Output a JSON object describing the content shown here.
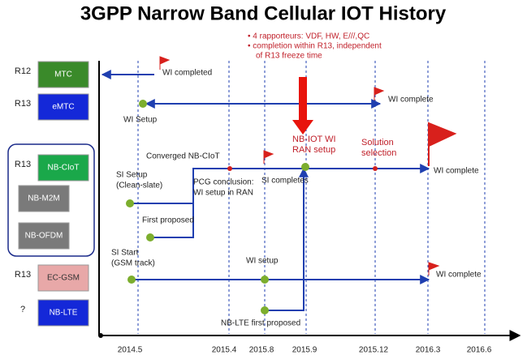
{
  "title": "3GPP Narrow Band Cellular IOT History",
  "notes": [
    "• 4 rapporteurs: VDF, HW, E///,QC",
    "• completion within R13, independent",
    "of R13 freeze time"
  ],
  "rows": [
    {
      "release": "R12",
      "label": "MTC"
    },
    {
      "release": "R13",
      "label": "eMTC"
    },
    {
      "release": "R13",
      "label": "NB-CIoT"
    },
    {
      "label": "NB-M2M"
    },
    {
      "label": "NB-OFDM"
    },
    {
      "release": "R13",
      "label": "EC-GSM"
    },
    {
      "release": "?",
      "label": "NB-LTE"
    }
  ],
  "timeline": [
    "2014.5",
    "2015.4",
    "2015.8",
    "2015.9",
    "2015.12",
    "2016.3",
    "2016.6"
  ],
  "annotations": [
    {
      "lines": [
        "WI completed"
      ]
    },
    {
      "lines": [
        "WI complete"
      ]
    },
    {
      "lines": [
        "WI  Setup"
      ]
    },
    {
      "lines": [
        "Converged NB-CIoT"
      ]
    },
    {
      "lines": [
        "NB-IOT WI",
        "RAN setup"
      ]
    },
    {
      "lines": [
        "Solution",
        "selection"
      ]
    },
    {
      "lines": [
        "WI complete"
      ]
    },
    {
      "lines": [
        "SI Setup",
        "(Clean-slate)"
      ]
    },
    {
      "lines": [
        "PCG conclusion:",
        "WI setup in RAN"
      ]
    },
    {
      "lines": [
        "SI completes"
      ]
    },
    {
      "lines": [
        "First proposed"
      ]
    },
    {
      "lines": [
        "SI Start",
        "(GSM track)"
      ]
    },
    {
      "lines": [
        "WI  setup"
      ]
    },
    {
      "lines": [
        "WI complete"
      ]
    },
    {
      "lines": [
        "NB-LTE first proposed"
      ]
    }
  ]
}
